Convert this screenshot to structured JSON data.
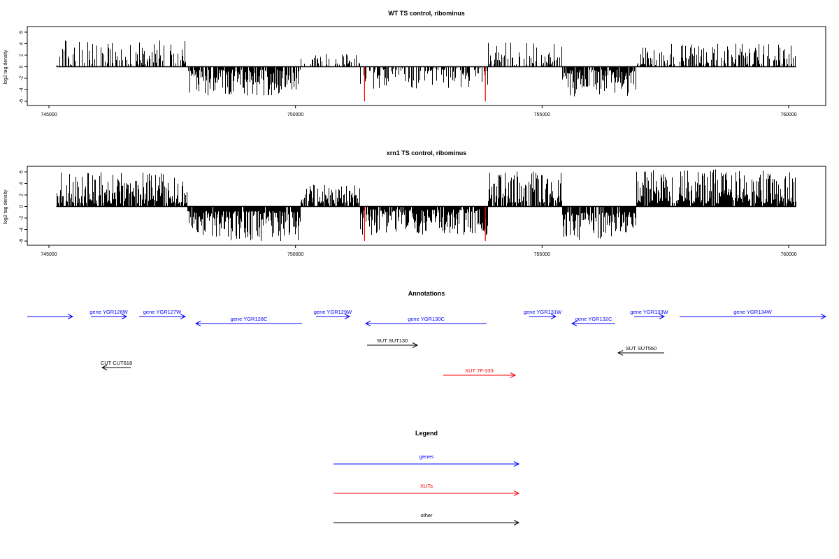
{
  "colors": {
    "ink": "#000000",
    "genes": "#0000ff",
    "xuts": "#ff0000",
    "other": "#000000",
    "marker": "#ff0000"
  },
  "chart_data": [
    {
      "type": "bar",
      "title": "WT TS control, ribominus",
      "ylabel": "log2 tag density",
      "xlim": [
        745000,
        760000
      ],
      "ylim": [
        -6,
        6
      ],
      "x_ticks": [
        745000,
        750000,
        755000,
        760000
      ],
      "y_ticks": [
        -6,
        -4,
        -2,
        0,
        2,
        4,
        6
      ],
      "markers": [
        751400,
        753850
      ],
      "segments": [
        {
          "from": 745150,
          "to": 747800,
          "sign": 1,
          "min": 0.3,
          "max": 4.8,
          "density": 0.45
        },
        {
          "from": 747800,
          "to": 750100,
          "sign": -1,
          "min": 0.5,
          "max": 5.0,
          "density": 0.8
        },
        {
          "from": 750100,
          "to": 751300,
          "sign": 1,
          "min": 0.3,
          "max": 2.4,
          "density": 0.45
        },
        {
          "from": 751300,
          "to": 753900,
          "sign": -1,
          "min": 0.3,
          "max": 3.8,
          "density": 0.5
        },
        {
          "from": 753900,
          "to": 755400,
          "sign": 1,
          "min": 0.3,
          "max": 4.4,
          "density": 0.35
        },
        {
          "from": 755400,
          "to": 756900,
          "sign": -1,
          "min": 0.5,
          "max": 5.2,
          "density": 0.85
        },
        {
          "from": 756900,
          "to": 760150,
          "sign": 1,
          "min": 0.3,
          "max": 4.0,
          "density": 0.55
        }
      ]
    },
    {
      "type": "bar",
      "title": "xrn1 TS control, ribominus",
      "ylabel": "log2 tag density",
      "xlim": [
        745000,
        760000
      ],
      "ylim": [
        -6,
        6
      ],
      "x_ticks": [
        745000,
        750000,
        755000,
        760000
      ],
      "y_ticks": [
        -6,
        -4,
        -2,
        0,
        2,
        4,
        6
      ],
      "markers": [
        751400,
        753850
      ],
      "segments": [
        {
          "from": 745150,
          "to": 747800,
          "sign": 1,
          "min": 0.5,
          "max": 6.0,
          "density": 0.85
        },
        {
          "from": 747800,
          "to": 750100,
          "sign": -1,
          "min": 0.8,
          "max": 6.0,
          "density": 0.95
        },
        {
          "from": 750100,
          "to": 751300,
          "sign": 1,
          "min": 0.5,
          "max": 3.8,
          "density": 0.8
        },
        {
          "from": 751300,
          "to": 753900,
          "sign": -1,
          "min": 0.5,
          "max": 5.0,
          "density": 0.9
        },
        {
          "from": 753900,
          "to": 755400,
          "sign": 1,
          "min": 0.5,
          "max": 6.2,
          "density": 0.85
        },
        {
          "from": 755400,
          "to": 756900,
          "sign": -1,
          "min": 1.0,
          "max": 6.0,
          "density": 0.95
        },
        {
          "from": 756900,
          "to": 760150,
          "sign": 1,
          "min": 0.5,
          "max": 6.5,
          "density": 0.9
        }
      ]
    }
  ],
  "annotations": {
    "title": "Annotations",
    "features": [
      {
        "label": "",
        "start": 744700,
        "end": 746550,
        "strand": "+",
        "kind": "genes"
      },
      {
        "label": "gene YGR126W",
        "start": 746200,
        "end": 747050,
        "strand": "+",
        "kind": "genes"
      },
      {
        "label": "gene YGR127W",
        "start": 747050,
        "end": 749000,
        "strand": "+",
        "kind": "genes"
      },
      {
        "label": "gene YGR128C",
        "start": 749100,
        "end": 753250,
        "strand": "-",
        "kind": "genes"
      },
      {
        "label": "gene YGR129W",
        "start": 753250,
        "end": 754700,
        "strand": "+",
        "kind": "genes"
      },
      {
        "label": "gene YGR130C",
        "start": 754850,
        "end": 759700,
        "strand": "-",
        "kind": "genes"
      },
      {
        "label": "gene YGR131W",
        "start": 760600,
        "end": 761800,
        "strand": "+",
        "kind": "genes"
      },
      {
        "label": "gene YGR132C",
        "start": 761900,
        "end": 763700,
        "strand": "-",
        "kind": "genes"
      },
      {
        "label": "gene YGR133W",
        "start": 763700,
        "end": 765000,
        "strand": "+",
        "kind": "genes"
      },
      {
        "label": "gene YGR134W",
        "start": 765600,
        "end": 771300,
        "strand": "+",
        "kind": "genes"
      },
      {
        "label": "SUT SUT130",
        "start": 754850,
        "end": 757000,
        "strand": "+",
        "kind": "other"
      },
      {
        "label": "SUT SUT560",
        "start": 762100,
        "end": 764000,
        "strand": "-",
        "kind": "other"
      },
      {
        "label": "CUT CUT618",
        "start": 747150,
        "end": 746300,
        "strand": "-",
        "kind": "other"
      },
      {
        "label": "XUT 7F-333",
        "start": 758100,
        "end": 761200,
        "strand": "+",
        "kind": "xuts"
      }
    ]
  },
  "legend": {
    "title": "Legend",
    "items": [
      {
        "label": "genes",
        "kind": "genes"
      },
      {
        "label": "XUTs",
        "kind": "xuts"
      },
      {
        "label": "other",
        "kind": "other"
      }
    ]
  }
}
